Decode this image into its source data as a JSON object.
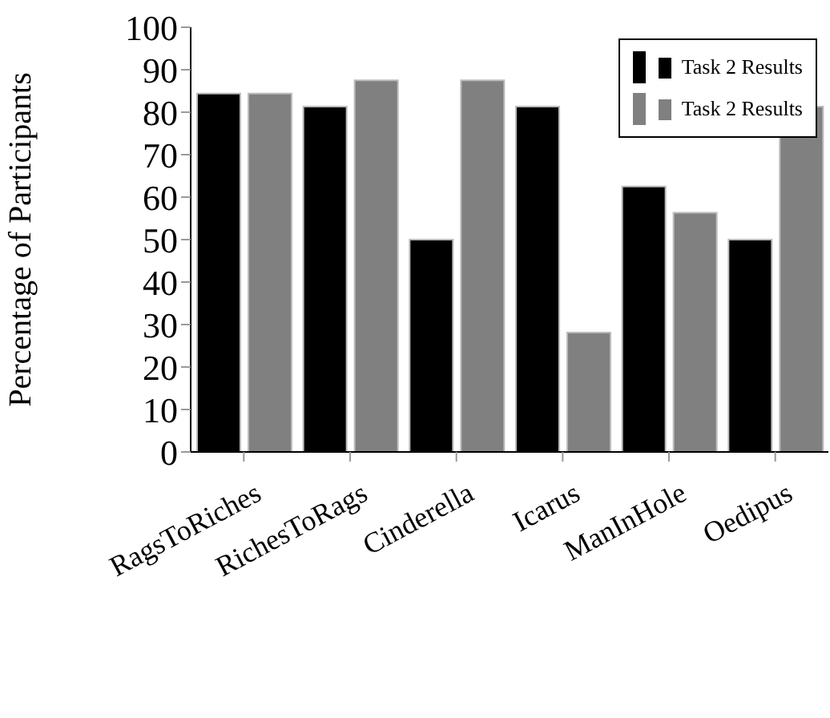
{
  "chart_data": {
    "type": "bar",
    "ylabel": "Percentage of Participants",
    "categories": [
      "RagsToRiches",
      "RichesToRags",
      "Cinderella",
      "Icarus",
      "ManInHole",
      "Oedipus"
    ],
    "series": [
      {
        "name": "Task 2 Results",
        "color": "#000000",
        "values": [
          84.4,
          81.3,
          50,
          81.3,
          62.5,
          50
        ]
      },
      {
        "name": "Task 2 Results",
        "color": "#808080",
        "values": [
          84.4,
          87.5,
          87.5,
          28.1,
          56.3,
          81.3
        ]
      }
    ],
    "ylim": [
      0,
      100
    ],
    "yticks": [
      0,
      10,
      20,
      30,
      40,
      50,
      60,
      70,
      80,
      90,
      100
    ],
    "legend": "top right"
  }
}
